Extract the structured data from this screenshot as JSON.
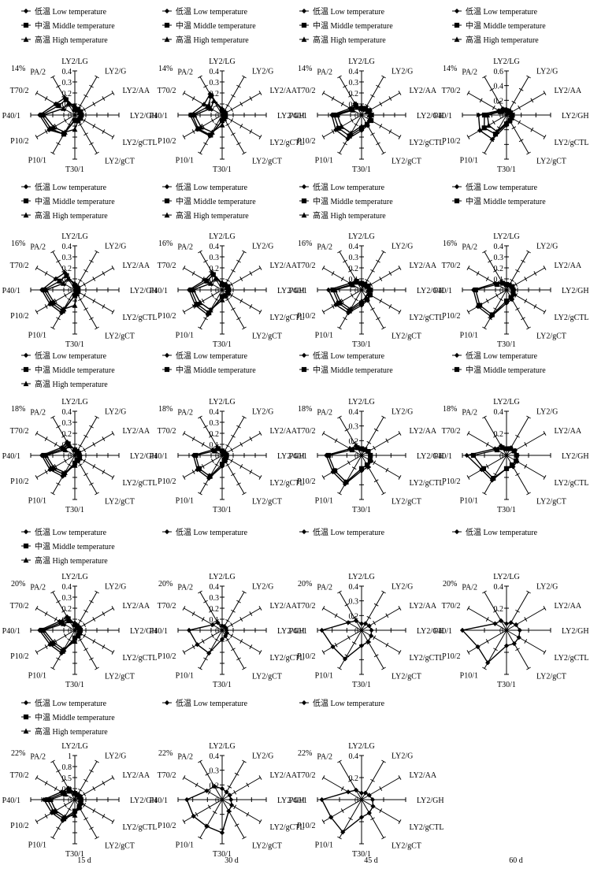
{
  "axis_labels": [
    "LY2/LG",
    "LY2/G",
    "LY2/AA",
    "LY2/GH",
    "LY2/gCTL",
    "LY2/gCT",
    "T30/1",
    "P10/1",
    "P10/2",
    "P40/1",
    "T70/2",
    "PA/2"
  ],
  "legend_labels": {
    "low": "低温 Low temperature",
    "middle": "中温 Middle temperature",
    "high": "高温 High temperature"
  },
  "column_labels": [
    "15 d",
    "30 d",
    "45 d",
    "60 d"
  ],
  "chart_data": [
    {
      "type": "radar",
      "row": 0,
      "col": 0,
      "moisture": "14%",
      "rticks": [
        "0.4",
        "0.3",
        "0.2",
        "0.1",
        "0"
      ],
      "rmax": 0.4,
      "series": [
        {
          "name": "低温 Low temperature",
          "values": [
            0.07,
            0.05,
            0.05,
            0.05,
            0.05,
            0.05,
            0.04,
            0.2,
            0.27,
            0.32,
            0.2,
            0.18
          ]
        },
        {
          "name": "中温 Middle temperature",
          "values": [
            0.05,
            0.06,
            0.06,
            0.06,
            0.06,
            0.06,
            0.05,
            0.2,
            0.25,
            0.3,
            0.17,
            0.16
          ]
        },
        {
          "name": "高温 High temperature",
          "values": [
            0.09,
            0.05,
            0.05,
            0.05,
            0.05,
            0.06,
            0.13,
            0.18,
            0.22,
            0.28,
            0.12,
            0.12
          ]
        }
      ]
    },
    {
      "type": "radar",
      "row": 0,
      "col": 1,
      "moisture": "14%",
      "rticks": [
        "0.4",
        "0.3",
        "0.2",
        "0.1",
        "0"
      ],
      "rmax": 0.4,
      "series": [
        {
          "name": "低温 Low temperature",
          "values": [
            0.04,
            0.03,
            0.03,
            0.03,
            0.03,
            0.04,
            0.05,
            0.22,
            0.26,
            0.29,
            0.19,
            0.22
          ]
        },
        {
          "name": "中温 Middle temperature",
          "values": [
            0.04,
            0.03,
            0.03,
            0.03,
            0.03,
            0.03,
            0.05,
            0.21,
            0.25,
            0.27,
            0.15,
            0.2
          ]
        },
        {
          "name": "高温 High temperature",
          "values": [
            0.06,
            0.03,
            0.03,
            0.03,
            0.03,
            0.04,
            0.09,
            0.18,
            0.22,
            0.25,
            0.12,
            0.15
          ]
        }
      ]
    },
    {
      "type": "radar",
      "row": 0,
      "col": 2,
      "moisture": "14%",
      "rticks": [
        "0.4",
        "0.3",
        "0.2",
        "0.1",
        "0"
      ],
      "rmax": 0.4,
      "series": [
        {
          "name": "低温 Low temperature",
          "values": [
            0.05,
            0.07,
            0.07,
            0.08,
            0.09,
            0.11,
            0.14,
            0.25,
            0.27,
            0.27,
            0.12,
            0.12
          ]
        },
        {
          "name": "中温 Middle temperature",
          "values": [
            0.06,
            0.07,
            0.08,
            0.09,
            0.1,
            0.1,
            0.12,
            0.22,
            0.24,
            0.25,
            0.1,
            0.1
          ]
        },
        {
          "name": "高温 High temperature",
          "values": [
            0.08,
            0.06,
            0.06,
            0.07,
            0.08,
            0.1,
            0.1,
            0.19,
            0.21,
            0.22,
            0.09,
            0.08
          ]
        }
      ]
    },
    {
      "type": "radar",
      "row": 0,
      "col": 3,
      "moisture": "14%",
      "rticks": [
        "0.6",
        "0.4",
        "0.2",
        "0"
      ],
      "rmax": 0.6,
      "series": [
        {
          "name": "低温 Low temperature",
          "values": [
            0.05,
            0.05,
            0.06,
            0.07,
            0.08,
            0.1,
            0.14,
            0.38,
            0.42,
            0.38,
            0.12,
            0.1
          ]
        },
        {
          "name": "中温 Middle temperature",
          "values": [
            0.06,
            0.06,
            0.06,
            0.08,
            0.08,
            0.09,
            0.12,
            0.3,
            0.35,
            0.3,
            0.1,
            0.08
          ]
        },
        {
          "name": "高温 High temperature",
          "values": [
            0.08,
            0.05,
            0.05,
            0.06,
            0.07,
            0.08,
            0.1,
            0.26,
            0.28,
            0.26,
            0.09,
            0.07
          ]
        }
      ]
    },
    {
      "type": "radar",
      "row": 1,
      "col": 0,
      "moisture": "16%",
      "rticks": [
        "0.4",
        "0.3",
        "0.2",
        "0.1",
        "0"
      ],
      "rmax": 0.4,
      "series": [
        {
          "name": "低温 Low temperature",
          "values": [
            0.04,
            0.03,
            0.03,
            0.03,
            0.03,
            0.04,
            0.05,
            0.24,
            0.26,
            0.3,
            0.2,
            0.18
          ]
        },
        {
          "name": "中温 Middle temperature",
          "values": [
            0.04,
            0.03,
            0.03,
            0.03,
            0.03,
            0.03,
            0.05,
            0.22,
            0.24,
            0.28,
            0.16,
            0.15
          ]
        },
        {
          "name": "高温 High temperature",
          "values": [
            0.06,
            0.03,
            0.03,
            0.03,
            0.03,
            0.04,
            0.14,
            0.2,
            0.22,
            0.26,
            0.12,
            0.12
          ]
        }
      ]
    },
    {
      "type": "radar",
      "row": 1,
      "col": 1,
      "moisture": "16%",
      "rticks": [
        "0.4",
        "0.3",
        "0.2",
        "0.1",
        "0"
      ],
      "rmax": 0.4,
      "series": [
        {
          "name": "低温 Low temperature",
          "values": [
            0.06,
            0.06,
            0.06,
            0.06,
            0.07,
            0.07,
            0.06,
            0.26,
            0.28,
            0.3,
            0.18,
            0.18
          ]
        },
        {
          "name": "中温 Middle temperature",
          "values": [
            0.05,
            0.05,
            0.06,
            0.06,
            0.06,
            0.06,
            0.06,
            0.24,
            0.26,
            0.28,
            0.16,
            0.16
          ]
        },
        {
          "name": "高温 High temperature",
          "values": [
            0.07,
            0.05,
            0.05,
            0.05,
            0.05,
            0.06,
            0.09,
            0.21,
            0.23,
            0.26,
            0.12,
            0.12
          ]
        }
      ]
    },
    {
      "type": "radar",
      "row": 1,
      "col": 2,
      "moisture": "16%",
      "rticks": [
        "0.4",
        "0.3",
        "0.2",
        "0.1",
        "0"
      ],
      "rmax": 0.4,
      "series": [
        {
          "name": "低温 Low temperature",
          "values": [
            0.05,
            0.06,
            0.07,
            0.08,
            0.09,
            0.11,
            0.14,
            0.24,
            0.27,
            0.3,
            0.12,
            0.1
          ]
        },
        {
          "name": "中温 Middle temperature",
          "values": [
            0.06,
            0.06,
            0.07,
            0.08,
            0.09,
            0.1,
            0.12,
            0.22,
            0.24,
            0.26,
            0.1,
            0.09
          ]
        },
        {
          "name": "高温 High temperature",
          "values": [
            0.07,
            0.05,
            0.06,
            0.06,
            0.07,
            0.08,
            0.1,
            0.2,
            0.22,
            0.24,
            0.09,
            0.08
          ]
        }
      ]
    },
    {
      "type": "radar",
      "row": 1,
      "col": 3,
      "moisture": "16%",
      "rticks": [
        "0.4",
        "0.3",
        "0.2",
        "0.1",
        "0"
      ],
      "rmax": 0.4,
      "series": [
        {
          "name": "低温 Low temperature",
          "values": [
            0.04,
            0.05,
            0.06,
            0.07,
            0.08,
            0.1,
            0.12,
            0.28,
            0.3,
            0.3,
            0.12,
            0.08
          ]
        },
        {
          "name": "中温 Middle temperature",
          "values": [
            0.05,
            0.05,
            0.06,
            0.06,
            0.07,
            0.08,
            0.1,
            0.26,
            0.28,
            0.28,
            0.1,
            0.07
          ]
        }
      ]
    },
    {
      "type": "radar",
      "row": 2,
      "col": 0,
      "moisture": "18%",
      "rticks": [
        "0.4",
        "0.3",
        "0.2",
        "0.1",
        "0"
      ],
      "rmax": 0.4,
      "series": [
        {
          "name": "低温 Low temperature",
          "values": [
            0.05,
            0.04,
            0.04,
            0.05,
            0.05,
            0.06,
            0.08,
            0.22,
            0.26,
            0.3,
            0.14,
            0.14
          ]
        },
        {
          "name": "中温 Middle temperature",
          "values": [
            0.05,
            0.04,
            0.04,
            0.04,
            0.05,
            0.05,
            0.07,
            0.2,
            0.24,
            0.28,
            0.12,
            0.12
          ]
        },
        {
          "name": "高温 High temperature",
          "values": [
            0.06,
            0.04,
            0.04,
            0.04,
            0.04,
            0.05,
            0.09,
            0.18,
            0.22,
            0.26,
            0.1,
            0.1
          ]
        }
      ]
    },
    {
      "type": "radar",
      "row": 2,
      "col": 1,
      "moisture": "18%",
      "rticks": [
        "0.4",
        "0.3",
        "0.2",
        "0.1",
        "0"
      ],
      "rmax": 0.4,
      "series": [
        {
          "name": "低温 Low temperature",
          "values": [
            0.04,
            0.03,
            0.03,
            0.04,
            0.04,
            0.06,
            0.1,
            0.24,
            0.26,
            0.26,
            0.1,
            0.08
          ]
        },
        {
          "name": "中温 Middle temperature",
          "values": [
            0.04,
            0.03,
            0.03,
            0.04,
            0.04,
            0.05,
            0.08,
            0.22,
            0.24,
            0.24,
            0.08,
            0.07
          ]
        }
      ]
    },
    {
      "type": "radar",
      "row": 2,
      "col": 2,
      "moisture": "18%",
      "rticks": [
        "0.4",
        "0.3",
        "0.2",
        "0"
      ],
      "rmax": 0.4,
      "series": [
        {
          "name": "低温 Low temperature",
          "values": [
            0.06,
            0.06,
            0.07,
            0.08,
            0.1,
            0.12,
            0.14,
            0.3,
            0.3,
            0.32,
            0.12,
            0.1
          ]
        },
        {
          "name": "中温 Middle temperature",
          "values": [
            0.06,
            0.06,
            0.07,
            0.08,
            0.09,
            0.1,
            0.12,
            0.28,
            0.28,
            0.3,
            0.1,
            0.08
          ]
        }
      ]
    },
    {
      "type": "radar",
      "row": 2,
      "col": 3,
      "moisture": "18%",
      "rticks": [
        "0.4",
        "0.2",
        "0"
      ],
      "rmax": 0.4,
      "series": [
        {
          "name": "低温 Low temperature",
          "values": [
            0.06,
            0.08,
            0.09,
            0.1,
            0.11,
            0.12,
            0.12,
            0.26,
            0.26,
            0.36,
            0.12,
            0.1
          ]
        },
        {
          "name": "中温 Middle temperature",
          "values": [
            0.06,
            0.07,
            0.08,
            0.09,
            0.1,
            0.1,
            0.12,
            0.24,
            0.24,
            0.3,
            0.1,
            0.08
          ]
        }
      ]
    },
    {
      "type": "radar",
      "row": 3,
      "col": 0,
      "moisture": "20%",
      "rticks": [
        "0.4",
        "0.3",
        "0.2",
        "0.1",
        "0"
      ],
      "rmax": 0.4,
      "series": [
        {
          "name": "低温 Low temperature",
          "values": [
            0.06,
            0.05,
            0.05,
            0.05,
            0.05,
            0.06,
            0.08,
            0.24,
            0.26,
            0.32,
            0.16,
            0.14
          ]
        },
        {
          "name": "中温 Middle temperature",
          "values": [
            0.05,
            0.04,
            0.04,
            0.05,
            0.05,
            0.06,
            0.07,
            0.22,
            0.24,
            0.3,
            0.14,
            0.12
          ]
        },
        {
          "name": "高温 High temperature",
          "values": [
            0.07,
            0.04,
            0.04,
            0.04,
            0.04,
            0.05,
            0.1,
            0.2,
            0.22,
            0.28,
            0.12,
            0.1
          ]
        }
      ]
    },
    {
      "type": "radar",
      "row": 3,
      "col": 1,
      "moisture": "20%",
      "rticks": [
        "0.4",
        "0.3",
        "0.2",
        "0.1",
        "0"
      ],
      "rmax": 0.4,
      "series": [
        {
          "name": "低温 Low temperature",
          "values": [
            0.04,
            0.04,
            0.04,
            0.04,
            0.05,
            0.06,
            0.08,
            0.24,
            0.26,
            0.3,
            0.1,
            0.08
          ]
        }
      ]
    },
    {
      "type": "radar",
      "row": 3,
      "col": 2,
      "moisture": "20%",
      "rticks": [
        "0.4",
        "0.3",
        "0.2",
        "0"
      ],
      "rmax": 0.4,
      "series": [
        {
          "name": "低温 Low temperature",
          "values": [
            0.06,
            0.07,
            0.08,
            0.09,
            0.1,
            0.12,
            0.14,
            0.3,
            0.3,
            0.36,
            0.14,
            0.1
          ]
        }
      ]
    },
    {
      "type": "radar",
      "row": 3,
      "col": 3,
      "moisture": "20%",
      "rticks": [
        "0.4",
        "0.2",
        "0"
      ],
      "rmax": 0.4,
      "series": [
        {
          "name": "低温 Low temperature",
          "values": [
            0.06,
            0.08,
            0.1,
            0.12,
            0.13,
            0.14,
            0.14,
            0.34,
            0.3,
            0.4,
            0.12,
            0.1
          ]
        }
      ]
    },
    {
      "type": "radar",
      "row": 4,
      "col": 0,
      "moisture": "22%",
      "rticks": [
        "1",
        "0.8",
        "0.5",
        "0.3",
        "0"
      ],
      "rmax": 1.0,
      "series": [
        {
          "name": "低温 Low temperature",
          "values": [
            0.16,
            0.14,
            0.15,
            0.15,
            0.18,
            0.22,
            0.3,
            0.55,
            0.6,
            0.7,
            0.35,
            0.3
          ]
        },
        {
          "name": "中温 Middle temperature",
          "values": [
            0.14,
            0.12,
            0.12,
            0.14,
            0.15,
            0.2,
            0.26,
            0.5,
            0.55,
            0.62,
            0.3,
            0.26
          ]
        },
        {
          "name": "高温 High temperature",
          "values": [
            0.18,
            0.12,
            0.12,
            0.12,
            0.14,
            0.18,
            0.35,
            0.45,
            0.5,
            0.55,
            0.25,
            0.22
          ]
        }
      ]
    },
    {
      "type": "radar",
      "row": 4,
      "col": 1,
      "moisture": "22%",
      "rticks": [
        "0.4",
        "0.3",
        "0.2",
        "0"
      ],
      "rmax": 0.4,
      "series": [
        {
          "name": "低温 Low temperature",
          "values": [
            0.1,
            0.08,
            0.08,
            0.08,
            0.1,
            0.12,
            0.3,
            0.28,
            0.3,
            0.32,
            0.16,
            0.14
          ]
        }
      ]
    },
    {
      "type": "radar",
      "row": 4,
      "col": 2,
      "moisture": "22%",
      "rticks": [
        "0.4",
        "0.2",
        "0"
      ],
      "rmax": 0.4,
      "series": [
        {
          "name": "低温 Low temperature",
          "values": [
            0.06,
            0.07,
            0.08,
            0.1,
            0.12,
            0.14,
            0.16,
            0.34,
            0.32,
            0.36,
            0.14,
            0.1
          ]
        }
      ]
    }
  ]
}
